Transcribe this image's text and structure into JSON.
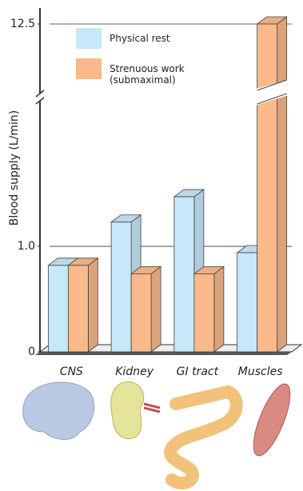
{
  "chart_data": {
    "type": "bar3d",
    "y_label": "Blood supply (L/min)",
    "categories": [
      "CNS",
      "Kidney",
      "GI tract",
      "Muscles"
    ],
    "series": [
      {
        "name": "Physical rest",
        "color": "#c6e8f8",
        "values": [
          0.82,
          1.23,
          1.47,
          0.94
        ]
      },
      {
        "name": "Strenuous work (submaximal)",
        "color": "#f9b98a",
        "values": [
          0.82,
          0.74,
          0.74,
          12.5
        ]
      }
    ],
    "ylim": [
      0,
      12.5
    ],
    "yticks": [
      0,
      {
        "value": 1,
        "label": "1.0"
      },
      12.5
    ],
    "ybreak": [
      2.35,
      12.2
    ],
    "grid": true
  }
}
